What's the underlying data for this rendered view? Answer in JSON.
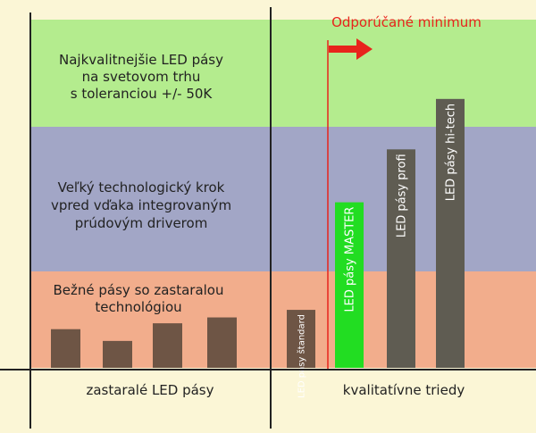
{
  "chart_data": {
    "type": "bar",
    "title": "",
    "xlabel": "",
    "ylabel": "",
    "x_groups": [
      "zastaralé LED pásy",
      "kvalitatívne triedy"
    ],
    "bands": [
      {
        "lines": [
          "Najkvalitnejšie LED pásy",
          "na svetovom  trhu",
          "s toleranciou +/- 50K"
        ],
        "color": "#b4ec8e"
      },
      {
        "lines": [
          "Veľký technologický krok",
          "vpred vďaka integrovaným",
          "prúdovým driverom"
        ],
        "color": "#a2a6c6"
      },
      {
        "lines": [
          "Bežné pásy so zastaralou",
          "technológiou"
        ],
        "color": "#f2ad8c"
      }
    ],
    "band_label_color": "#222222",
    "old_bars": {
      "values": [
        46,
        32,
        53,
        60
      ],
      "color": "#6e5545"
    },
    "quality_bars": [
      {
        "label": "LED pásy štandard",
        "value": 69,
        "color": "#6e5545"
      },
      {
        "label": "LED pásy MASTER",
        "value": 197,
        "color": "#22dd22"
      },
      {
        "label": "LED pásy profi",
        "value": 260,
        "color": "#5f5c52"
      },
      {
        "label": "LED pásy hi-tech",
        "value": 320,
        "color": "#5f5c52"
      }
    ],
    "recommended_minimum": {
      "label": "Odporúčané minimum",
      "color": "#e8241c"
    },
    "ylim": [
      0,
      340
    ]
  }
}
